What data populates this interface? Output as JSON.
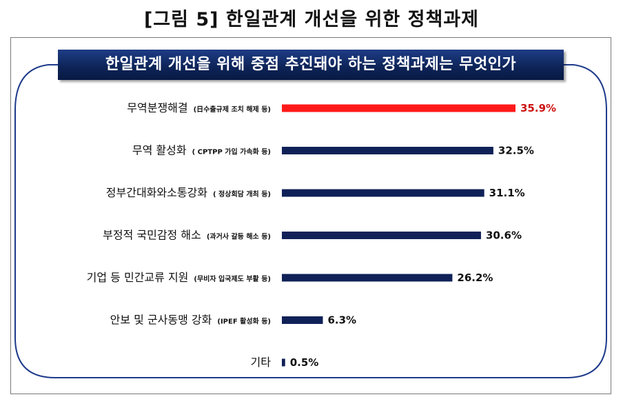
{
  "figure_title": "[그림 5] 한일관계 개선을 위한 정책과제",
  "chart_data": {
    "type": "bar",
    "orientation": "horizontal",
    "title": "한일관계 개선을 위해 중점 추진돼야 하는 정책과제는 무엇인가",
    "categories": [
      {
        "main": "무역분쟁해결",
        "sub": "(日수출규제 조치 해제 등)"
      },
      {
        "main": "무역 활성화",
        "sub": "( CPTPP 가입 가속화 등)"
      },
      {
        "main": "정부간대화와소통강화",
        "sub": "( 정상회담 개최 등)"
      },
      {
        "main": "부정적 국민감정 해소",
        "sub": "(과거사 갈등 해소 등)"
      },
      {
        "main": "기업 등 민간교류 지원",
        "sub": "(무비자 입국제도 부활 등)"
      },
      {
        "main": "안보 및 군사동맹 강화",
        "sub": "(IPEF 활성화 등)"
      },
      {
        "main": "기타",
        "sub": ""
      }
    ],
    "values": [
      35.9,
      32.5,
      31.1,
      30.6,
      26.2,
      6.3,
      0.5
    ],
    "value_labels": [
      "35.9%",
      "32.5%",
      "31.1%",
      "30.6%",
      "26.2%",
      "6.3%",
      "0.5%"
    ],
    "highlight_index": 0,
    "xlim": [
      0,
      35.9
    ],
    "colors": {
      "highlight": "#ff1a1a",
      "bar": "#0f2157",
      "highlight_label": "#cc1111",
      "label": "#111111",
      "frame_curve": "#1d3a8a"
    }
  }
}
